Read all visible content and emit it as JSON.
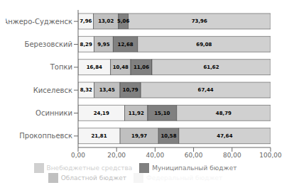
{
  "chart_data": {
    "type": "bar",
    "orientation": "horizontal",
    "stacked": true,
    "data_labels": true,
    "grid": false,
    "legend": "bottom",
    "categories": [
      "Анжеро-Судженск",
      "Березовский",
      "Топки",
      "Киселевск",
      "Осинники",
      "Прокоппьевск"
    ],
    "series": [
      {
        "name": "Федеральный бюджет",
        "color": "#f5f5f5",
        "values": [
          7.96,
          8.29,
          16.84,
          8.32,
          24.19,
          21.81
        ],
        "value_labels": [
          "7,96",
          "8,29",
          "16,84",
          "8,32",
          "24,19",
          "21,81"
        ]
      },
      {
        "name": "Областной бюджет",
        "color": "#c0c0c0",
        "values": [
          13.02,
          9.95,
          10.48,
          13.45,
          11.92,
          19.97
        ],
        "value_labels": [
          "13,02",
          "9,95",
          "10,48",
          "13,45",
          "11,92",
          "19,97"
        ]
      },
      {
        "name": "Муниципальный бюджет",
        "color": "#808080",
        "values": [
          5.06,
          12.68,
          11.06,
          10.79,
          15.1,
          10.58
        ],
        "value_labels": [
          "5,06",
          "12,68",
          "11,06",
          "10,79",
          "15,10",
          "10,58"
        ]
      },
      {
        "name": "Внебюджетные средства",
        "color": "#d0d0d0",
        "values": [
          73.96,
          69.08,
          61.62,
          67.44,
          48.79,
          47.64
        ],
        "value_labels": [
          "73,96",
          "69,08",
          "61,62",
          "67,44",
          "48,79",
          "47,64"
        ]
      }
    ],
    "xlim": [
      0,
      100
    ],
    "xticks": [
      {
        "value": 0,
        "label": "0,00"
      },
      {
        "value": 20,
        "label": "20,00"
      },
      {
        "value": 40,
        "label": "40,00"
      },
      {
        "value": 60,
        "label": "60,00"
      },
      {
        "value": 80,
        "label": "80,00"
      },
      {
        "value": 100,
        "label": "100,00"
      }
    ]
  }
}
